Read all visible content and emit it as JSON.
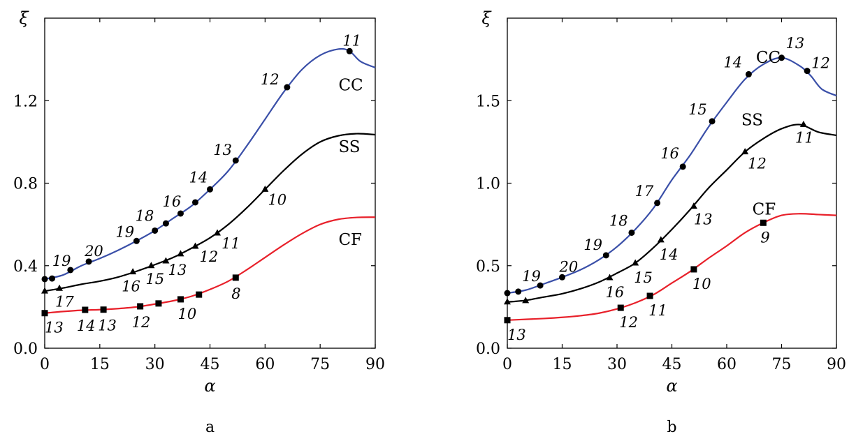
{
  "chart_data": [
    {
      "type": "line",
      "panel": "a",
      "caption": "a",
      "xlabel": "α",
      "ylabel": "ξ",
      "xlim": [
        0,
        90
      ],
      "ylim": [
        0,
        1.6
      ],
      "xticks": [
        0,
        15,
        30,
        45,
        60,
        75,
        90
      ],
      "xtick_labels": [
        "0",
        "15",
        "30",
        "45",
        "60",
        "75",
        "90"
      ],
      "yticks": [
        0.0,
        0.4,
        0.8,
        1.2
      ],
      "ytick_labels": [
        "0.0",
        "0.4",
        "0.8",
        "1.2"
      ],
      "grid": false,
      "series": [
        {
          "name": "CC",
          "color": "#3a4fa8",
          "marker": "circle",
          "curve": [
            [
              0,
              0.335
            ],
            [
              5,
              0.355
            ],
            [
              10,
              0.4
            ],
            [
              15,
              0.435
            ],
            [
              20,
              0.475
            ],
            [
              25,
              0.52
            ],
            [
              30,
              0.57
            ],
            [
              35,
              0.63
            ],
            [
              40,
              0.69
            ],
            [
              45,
              0.77
            ],
            [
              50,
              0.86
            ],
            [
              55,
              0.98
            ],
            [
              60,
              1.11
            ],
            [
              65,
              1.24
            ],
            [
              70,
              1.35
            ],
            [
              75,
              1.42
            ],
            [
              80,
              1.45
            ],
            [
              83,
              1.44
            ],
            [
              86,
              1.39
            ],
            [
              90,
              1.36
            ]
          ],
          "points": [
            {
              "x": 0,
              "y": 0.335,
              "label": ""
            },
            {
              "x": 2,
              "y": 0.338,
              "label": ""
            },
            {
              "x": 7,
              "y": 0.379,
              "label": "19"
            },
            {
              "x": 12,
              "y": 0.42,
              "label": "20"
            },
            {
              "x": 25,
              "y": 0.52,
              "label": "19"
            },
            {
              "x": 30,
              "y": 0.57,
              "label": "18"
            },
            {
              "x": 33,
              "y": 0.605,
              "label": ""
            },
            {
              "x": 37,
              "y": 0.653,
              "label": "16"
            },
            {
              "x": 41,
              "y": 0.707,
              "label": ""
            },
            {
              "x": 45,
              "y": 0.77,
              "label": "14"
            },
            {
              "x": 52,
              "y": 0.91,
              "label": "13"
            },
            {
              "x": 66,
              "y": 1.265,
              "label": "12"
            },
            {
              "x": 83,
              "y": 1.44,
              "label": "11"
            }
          ]
        },
        {
          "name": "SS",
          "color": "#000000",
          "marker": "triangle",
          "curve": [
            [
              0,
              0.277
            ],
            [
              5,
              0.292
            ],
            [
              10,
              0.31
            ],
            [
              15,
              0.325
            ],
            [
              20,
              0.345
            ],
            [
              25,
              0.373
            ],
            [
              30,
              0.405
            ],
            [
              35,
              0.44
            ],
            [
              40,
              0.485
            ],
            [
              45,
              0.535
            ],
            [
              50,
              0.6
            ],
            [
              55,
              0.68
            ],
            [
              60,
              0.77
            ],
            [
              65,
              0.86
            ],
            [
              70,
              0.94
            ],
            [
              75,
              1.0
            ],
            [
              80,
              1.03
            ],
            [
              85,
              1.04
            ],
            [
              90,
              1.035
            ]
          ],
          "points": [
            {
              "x": 0,
              "y": 0.277,
              "label": ""
            },
            {
              "x": 4,
              "y": 0.29,
              "label": "17"
            },
            {
              "x": 24,
              "y": 0.37,
              "label": "16"
            },
            {
              "x": 29,
              "y": 0.4,
              "label": "15"
            },
            {
              "x": 33,
              "y": 0.423,
              "label": ""
            },
            {
              "x": 37,
              "y": 0.457,
              "label": "13"
            },
            {
              "x": 41,
              "y": 0.494,
              "label": "12"
            },
            {
              "x": 47,
              "y": 0.558,
              "label": "11"
            },
            {
              "x": 60,
              "y": 0.77,
              "label": "10"
            }
          ]
        },
        {
          "name": "CF",
          "color": "#e8202a",
          "marker": "square",
          "curve": [
            [
              0,
              0.17
            ],
            [
              5,
              0.178
            ],
            [
              10,
              0.184
            ],
            [
              15,
              0.187
            ],
            [
              20,
              0.192
            ],
            [
              25,
              0.2
            ],
            [
              30,
              0.214
            ],
            [
              35,
              0.23
            ],
            [
              40,
              0.252
            ],
            [
              45,
              0.285
            ],
            [
              50,
              0.325
            ],
            [
              55,
              0.38
            ],
            [
              60,
              0.44
            ],
            [
              65,
              0.5
            ],
            [
              70,
              0.555
            ],
            [
              75,
              0.6
            ],
            [
              80,
              0.625
            ],
            [
              85,
              0.634
            ],
            [
              90,
              0.635
            ]
          ],
          "points": [
            {
              "x": 0,
              "y": 0.17,
              "label": "13"
            },
            {
              "x": 11,
              "y": 0.186,
              "label": "14"
            },
            {
              "x": 16,
              "y": 0.187,
              "label": "13"
            },
            {
              "x": 26,
              "y": 0.203,
              "label": "12"
            },
            {
              "x": 31,
              "y": 0.217,
              "label": ""
            },
            {
              "x": 37,
              "y": 0.237,
              "label": "10"
            },
            {
              "x": 42,
              "y": 0.26,
              "label": ""
            },
            {
              "x": 52,
              "y": 0.342,
              "label": "8"
            }
          ]
        }
      ]
    },
    {
      "type": "line",
      "panel": "b",
      "caption": "b",
      "xlabel": "α",
      "ylabel": "ξ",
      "xlim": [
        0,
        90
      ],
      "ylim": [
        0,
        2.0
      ],
      "xticks": [
        0,
        15,
        30,
        45,
        60,
        75,
        90
      ],
      "xtick_labels": [
        "0",
        "15",
        "30",
        "45",
        "60",
        "75",
        "90"
      ],
      "yticks": [
        0.0,
        0.5,
        1.0,
        1.5
      ],
      "ytick_labels": [
        "0.0",
        "0.5",
        "1.0",
        "1.5"
      ],
      "grid": false,
      "series": [
        {
          "name": "CC",
          "color": "#3a4fa8",
          "marker": "circle",
          "curve": [
            [
              0,
              0.334
            ],
            [
              5,
              0.352
            ],
            [
              10,
              0.39
            ],
            [
              15,
              0.43
            ],
            [
              20,
              0.475
            ],
            [
              25,
              0.535
            ],
            [
              30,
              0.615
            ],
            [
              35,
              0.72
            ],
            [
              40,
              0.85
            ],
            [
              45,
              1.02
            ],
            [
              50,
              1.17
            ],
            [
              55,
              1.34
            ],
            [
              60,
              1.49
            ],
            [
              65,
              1.63
            ],
            [
              70,
              1.72
            ],
            [
              75,
              1.76
            ],
            [
              80,
              1.71
            ],
            [
              83,
              1.65
            ],
            [
              86,
              1.57
            ],
            [
              90,
              1.53
            ]
          ],
          "points": [
            {
              "x": 0,
              "y": 0.334,
              "label": ""
            },
            {
              "x": 3,
              "y": 0.343,
              "label": ""
            },
            {
              "x": 9,
              "y": 0.38,
              "label": "19"
            },
            {
              "x": 15,
              "y": 0.43,
              "label": "20"
            },
            {
              "x": 27,
              "y": 0.563,
              "label": "19"
            },
            {
              "x": 34,
              "y": 0.7,
              "label": "18"
            },
            {
              "x": 41,
              "y": 0.88,
              "label": "17"
            },
            {
              "x": 48,
              "y": 1.1,
              "label": "16"
            },
            {
              "x": 56,
              "y": 1.375,
              "label": "15"
            },
            {
              "x": 66,
              "y": 1.66,
              "label": "14"
            },
            {
              "x": 75,
              "y": 1.76,
              "label": "13"
            },
            {
              "x": 82,
              "y": 1.68,
              "label": "12"
            }
          ]
        },
        {
          "name": "SS",
          "color": "#000000",
          "marker": "triangle",
          "curve": [
            [
              0,
              0.28
            ],
            [
              5,
              0.29
            ],
            [
              10,
              0.31
            ],
            [
              15,
              0.33
            ],
            [
              20,
              0.36
            ],
            [
              25,
              0.4
            ],
            [
              30,
              0.455
            ],
            [
              35,
              0.516
            ],
            [
              40,
              0.61
            ],
            [
              45,
              0.72
            ],
            [
              50,
              0.84
            ],
            [
              55,
              0.97
            ],
            [
              60,
              1.08
            ],
            [
              65,
              1.19
            ],
            [
              70,
              1.27
            ],
            [
              75,
              1.33
            ],
            [
              80,
              1.355
            ],
            [
              85,
              1.31
            ],
            [
              90,
              1.29
            ]
          ],
          "points": [
            {
              "x": 0,
              "y": 0.28,
              "label": ""
            },
            {
              "x": 5,
              "y": 0.288,
              "label": ""
            },
            {
              "x": 28,
              "y": 0.427,
              "label": "16"
            },
            {
              "x": 35,
              "y": 0.516,
              "label": "15"
            },
            {
              "x": 42,
              "y": 0.656,
              "label": "14"
            },
            {
              "x": 51,
              "y": 0.86,
              "label": "13"
            },
            {
              "x": 65,
              "y": 1.19,
              "label": "12"
            },
            {
              "x": 81,
              "y": 1.355,
              "label": "11"
            }
          ]
        },
        {
          "name": "CF",
          "color": "#e8202a",
          "marker": "square",
          "curve": [
            [
              0,
              0.17
            ],
            [
              5,
              0.175
            ],
            [
              10,
              0.18
            ],
            [
              15,
              0.187
            ],
            [
              20,
              0.197
            ],
            [
              25,
              0.212
            ],
            [
              30,
              0.238
            ],
            [
              35,
              0.275
            ],
            [
              40,
              0.325
            ],
            [
              45,
              0.395
            ],
            [
              50,
              0.465
            ],
            [
              55,
              0.545
            ],
            [
              60,
              0.62
            ],
            [
              65,
              0.7
            ],
            [
              70,
              0.76
            ],
            [
              75,
              0.805
            ],
            [
              80,
              0.815
            ],
            [
              85,
              0.81
            ],
            [
              90,
              0.805
            ]
          ],
          "points": [
            {
              "x": 0,
              "y": 0.17,
              "label": "13"
            },
            {
              "x": 31,
              "y": 0.245,
              "label": "12"
            },
            {
              "x": 39,
              "y": 0.317,
              "label": "11"
            },
            {
              "x": 51,
              "y": 0.478,
              "label": "10"
            },
            {
              "x": 70,
              "y": 0.76,
              "label": "9"
            }
          ]
        }
      ]
    }
  ]
}
